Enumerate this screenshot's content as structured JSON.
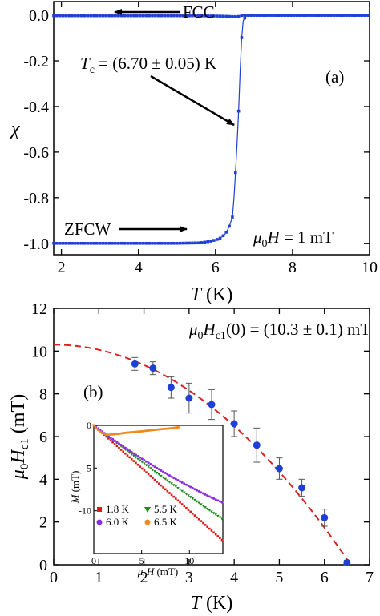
{
  "chart_data": [
    {
      "id": "a",
      "type": "scatter",
      "panel_label": "(a)",
      "xlabel": "T (K)",
      "ylabel": "χ",
      "xlim": [
        1.8,
        10
      ],
      "ylim": [
        -1.05,
        0.06
      ],
      "xticks": [
        2,
        4,
        6,
        8,
        10
      ],
      "xtick_labels": [
        "2",
        "4",
        "6",
        "8",
        "10"
      ],
      "yticks": [
        0.0,
        -0.2,
        -0.4,
        -0.6,
        -0.8,
        -1.0
      ],
      "ytick_labels": [
        "0.0",
        "-0.2",
        "-0.4",
        "-0.6",
        "-0.8",
        "-1.0"
      ],
      "color": "#1f3fd6",
      "series": [
        {
          "name": "FCC",
          "x": [
            1.8,
            2.5,
            3.5,
            4.5,
            5.5,
            6.2,
            6.5,
            6.6,
            6.7,
            7.0,
            8.0,
            9.0,
            10.0
          ],
          "y": [
            -0.002,
            -0.002,
            -0.002,
            -0.002,
            -0.002,
            -0.004,
            -0.006,
            -0.005,
            0.0,
            0.0,
            0.0,
            0.0,
            0.0
          ]
        },
        {
          "name": "ZFCW",
          "x": [
            1.8,
            3.0,
            4.0,
            5.0,
            5.6,
            5.9,
            6.1,
            6.25,
            6.35,
            6.45,
            6.5,
            6.55,
            6.6,
            6.65,
            6.7,
            6.8,
            7.5,
            8.5,
            10.0
          ],
          "y": [
            -1.0,
            -1.0,
            -1.0,
            -1.0,
            -0.998,
            -0.99,
            -0.98,
            -0.96,
            -0.93,
            -0.88,
            -0.75,
            -0.6,
            -0.42,
            -0.2,
            -0.03,
            0.0,
            0.0,
            0.0,
            0.0
          ]
        }
      ],
      "annotations": {
        "fcc_label": "FCC",
        "zfcw_label": "ZFCW",
        "tc_label_prefix": "T",
        "tc_label_sub": "c",
        "tc_label_value": " = (6.70 ± 0.05) K",
        "field_prefix": "μ",
        "field_sub": "0",
        "field_value": "H = 1 mT"
      }
    },
    {
      "id": "b",
      "type": "scatter",
      "panel_label": "(b)",
      "xlabel": "T (K)",
      "ylabel": "μ0Hc1 (mT)",
      "xlim": [
        0,
        7
      ],
      "ylim": [
        0,
        12
      ],
      "xticks": [
        0,
        1,
        2,
        3,
        4,
        5,
        6,
        7
      ],
      "xtick_labels": [
        "0",
        "1",
        "2",
        "3",
        "4",
        "5",
        "6",
        "7"
      ],
      "yticks": [
        0,
        2,
        4,
        6,
        8,
        10,
        12
      ],
      "ytick_labels": [
        "0",
        "2",
        "4",
        "6",
        "8",
        "10",
        "12"
      ],
      "series": [
        {
          "name": "data",
          "color": "#1f3fd6",
          "x": [
            1.8,
            2.2,
            2.6,
            3.0,
            3.5,
            4.0,
            4.5,
            5.0,
            5.5,
            6.0,
            6.5
          ],
          "y": [
            9.4,
            9.2,
            8.3,
            7.8,
            7.5,
            6.6,
            5.6,
            4.5,
            3.6,
            2.2,
            0.1
          ],
          "err": [
            0.3,
            0.3,
            0.5,
            0.7,
            0.7,
            0.6,
            0.8,
            0.5,
            0.4,
            0.4,
            0.1
          ]
        },
        {
          "name": "fit",
          "color": "#e02020",
          "style": "dashed",
          "model": "Hc1(0)*(1-(T/Tc)^2)",
          "hc1_0": 10.3,
          "tc": 6.58
        }
      ],
      "annotations": {
        "hc1_prefix": "μ",
        "hc1_sub0": "0",
        "hc1_mid": "H",
        "hc1_sub": "c1",
        "hc1_value": "(0) = (10.3 ± 0.1) mT"
      },
      "inset": {
        "type": "scatter",
        "xlabel": "μ0H (mT)",
        "ylabel": "M (mT)",
        "xlim": [
          0,
          13.5
        ],
        "ylim": [
          -15,
          0
        ],
        "xticks": [
          0,
          5,
          10
        ],
        "xtick_labels": [
          "0",
          "5",
          "10"
        ],
        "yticks": [
          0,
          -5,
          -10
        ],
        "ytick_labels": [
          "0",
          "-5",
          "-10"
        ],
        "series": [
          {
            "name": "1.8 K",
            "color": "#e01818",
            "marker": "square",
            "slope": -1.0,
            "xmax": 13.5
          },
          {
            "name": "5.5 K",
            "color": "#1a8a1a",
            "marker": "triangle-down",
            "slope": -0.87,
            "curv": 0.004,
            "xmax": 13.5
          },
          {
            "name": "6.0 K",
            "color": "#8a2be2",
            "marker": "circle",
            "slope": -0.84,
            "curv": 0.0125,
            "xmax": 13.5
          },
          {
            "name": "6.5 K",
            "color": "#f08a20",
            "marker": "circle",
            "y": [
              0,
              -0.6,
              -1.0,
              -1.1,
              -1.0,
              -0.85,
              -0.7,
              -0.5,
              -0.35,
              -0.2
            ],
            "x": [
              0,
              0.5,
              1.0,
              1.5,
              2.5,
              3.5,
              5.0,
              6.5,
              8.0,
              9.0
            ]
          }
        ]
      }
    }
  ]
}
